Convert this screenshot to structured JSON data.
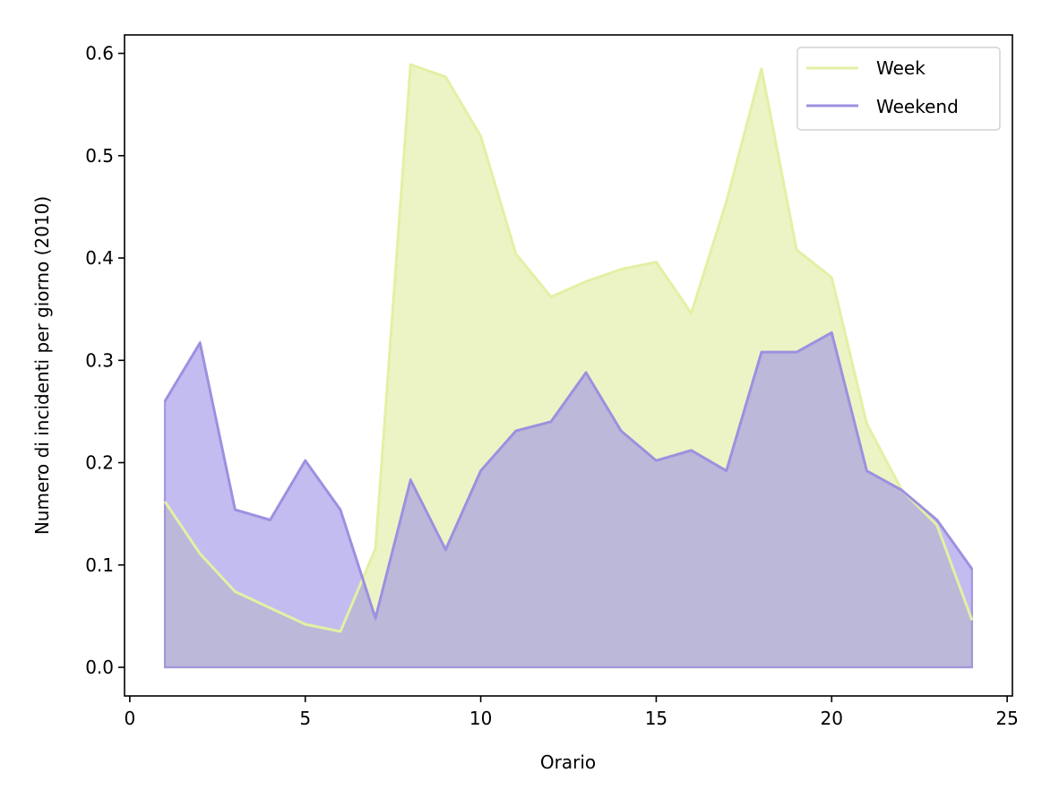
{
  "chart_data": {
    "type": "area",
    "xlabel": "Orario",
    "ylabel": "Numero di incidenti per giorno (2010)",
    "xlim": [
      -0.15,
      25.15
    ],
    "ylim": [
      -0.028,
      0.618
    ],
    "xticks": [
      0,
      5,
      10,
      15,
      20,
      25
    ],
    "yticks": [
      0.0,
      0.1,
      0.2,
      0.3,
      0.4,
      0.5,
      0.6
    ],
    "xtick_labels": [
      "0",
      "5",
      "10",
      "15",
      "20",
      "25"
    ],
    "ytick_labels": [
      "0.0",
      "0.1",
      "0.2",
      "0.3",
      "0.4",
      "0.5",
      "0.6"
    ],
    "grid": false,
    "legend_position": "top-right",
    "x": [
      1,
      2,
      3,
      4,
      5,
      6,
      7,
      8,
      9,
      10,
      11,
      12,
      13,
      14,
      15,
      16,
      17,
      18,
      19,
      20,
      21,
      22,
      23,
      24
    ],
    "series": [
      {
        "name": "Week",
        "line_color": "#e3f0a4",
        "fill_color": "#dceb97",
        "fill_opacity": 0.55,
        "values": [
          0.162,
          0.111,
          0.074,
          0.058,
          0.042,
          0.035,
          0.116,
          0.589,
          0.577,
          0.519,
          0.404,
          0.362,
          0.377,
          0.389,
          0.396,
          0.346,
          0.455,
          0.585,
          0.408,
          0.381,
          0.238,
          0.173,
          0.139,
          0.046
        ]
      },
      {
        "name": "Weekend",
        "line_color": "#9d90e0",
        "fill_color": "#9b8fe6",
        "fill_opacity": 0.6,
        "values": [
          0.26,
          0.317,
          0.154,
          0.144,
          0.202,
          0.154,
          0.048,
          0.183,
          0.115,
          0.192,
          0.231,
          0.24,
          0.288,
          0.231,
          0.202,
          0.212,
          0.192,
          0.308,
          0.308,
          0.327,
          0.192,
          0.173,
          0.144,
          0.096
        ]
      }
    ]
  }
}
